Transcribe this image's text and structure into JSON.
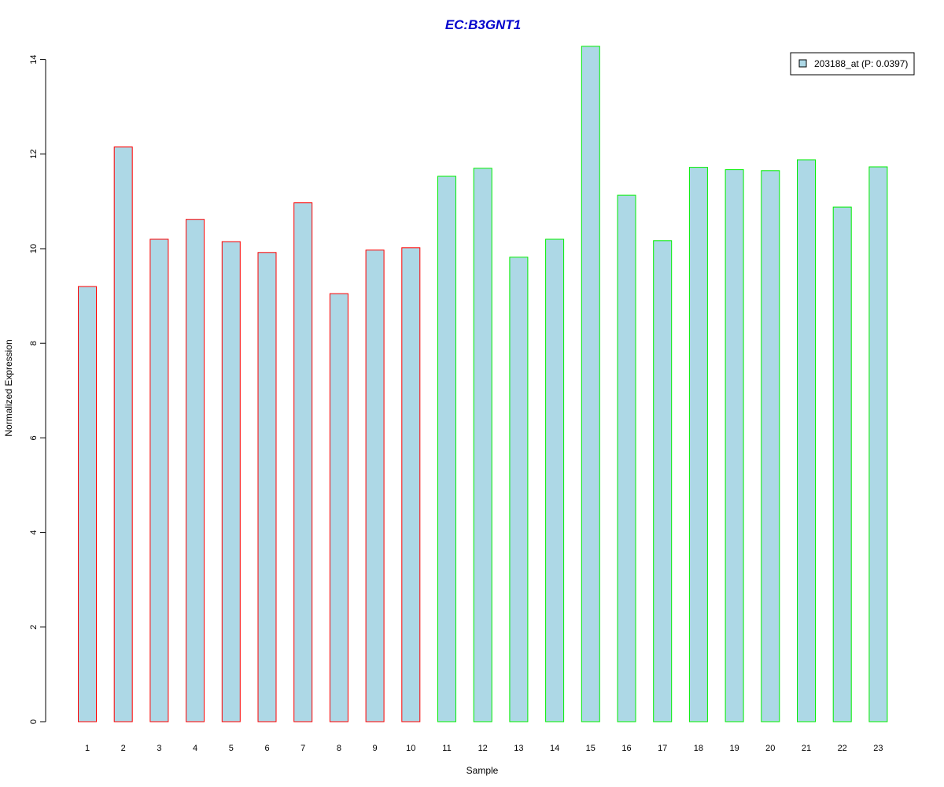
{
  "chart_data": {
    "type": "bar",
    "title": "EC:B3GNT1",
    "xlabel": "Sample",
    "ylabel": "Normalized Expression",
    "categories": [
      "1",
      "2",
      "3",
      "4",
      "5",
      "6",
      "7",
      "8",
      "9",
      "10",
      "11",
      "12",
      "13",
      "14",
      "15",
      "16",
      "17",
      "18",
      "19",
      "20",
      "21",
      "22",
      "23"
    ],
    "series": [
      {
        "name": "203188_at (P: 0.0397)",
        "values": [
          9.2,
          12.15,
          10.2,
          10.62,
          10.15,
          9.92,
          10.97,
          9.05,
          9.97,
          10.02,
          11.53,
          11.7,
          9.82,
          10.2,
          14.28,
          11.13,
          10.17,
          11.72,
          11.67,
          11.65,
          11.88,
          10.88,
          11.73
        ]
      }
    ],
    "group_border_colors": [
      "#ff0000",
      "#ff0000",
      "#ff0000",
      "#ff0000",
      "#ff0000",
      "#ff0000",
      "#ff0000",
      "#ff0000",
      "#ff0000",
      "#ff0000",
      "#00ee00",
      "#00ee00",
      "#00ee00",
      "#00ee00",
      "#00ee00",
      "#00ee00",
      "#00ee00",
      "#00ee00",
      "#00ee00",
      "#00ee00",
      "#00ee00",
      "#00ee00",
      "#00ee00"
    ],
    "bar_fill": "#add8e6",
    "title_color": "#0000cc",
    "ylim": [
      0,
      14.3
    ],
    "yticks": [
      0,
      2,
      4,
      6,
      8,
      10,
      12,
      14
    ],
    "grid": false,
    "legend_position": "top-right"
  }
}
